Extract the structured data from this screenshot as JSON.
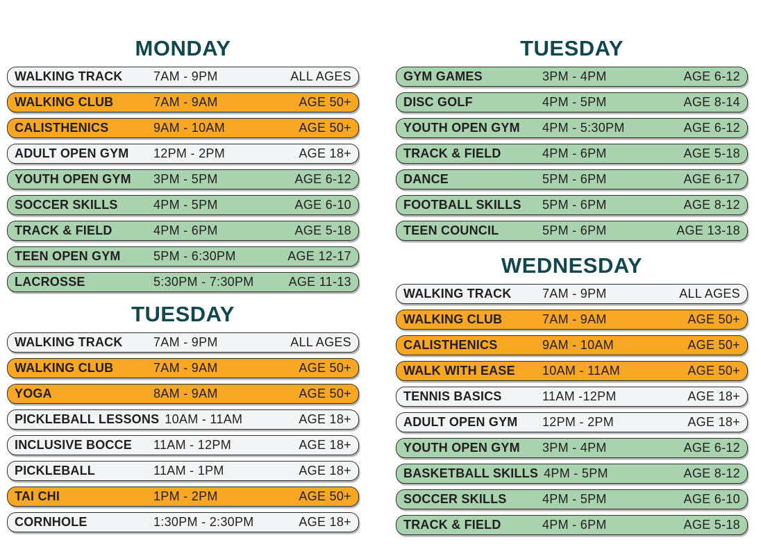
{
  "colors": {
    "title": "#11474E",
    "orange": "#F7A723",
    "green": "#A8D3AE",
    "white_row": "#F3F4F6",
    "border": "#32312D",
    "text": "#231F20",
    "page_bg": "#FFFFFF"
  },
  "legend_semantics": {
    "orange": "senior programs (AGE 50+)",
    "green": "youth programs",
    "white": "adult / all-ages programs"
  },
  "columns": {
    "left": {
      "sections": [
        {
          "title": "MONDAY",
          "rows": [
            {
              "name": "WALKING TRACK",
              "time": "7AM - 9PM",
              "age": "ALL AGES",
              "variant": "white"
            },
            {
              "name": "WALKING CLUB",
              "time": "7AM - 9AM",
              "age": "AGE 50+",
              "variant": "orange"
            },
            {
              "name": "CALISTHENICS",
              "time": "9AM - 10AM",
              "age": "AGE 50+",
              "variant": "orange"
            },
            {
              "name": "ADULT OPEN GYM",
              "time": "12PM - 2PM",
              "age": "AGE 18+",
              "variant": "white"
            },
            {
              "name": "YOUTH OPEN GYM",
              "time": "3PM - 5PM",
              "age": "AGE 6-12",
              "variant": "green"
            },
            {
              "name": "SOCCER SKILLS",
              "time": "4PM - 5PM",
              "age": "AGE 6-10",
              "variant": "green"
            },
            {
              "name": "TRACK & FIELD",
              "time": "4PM - 6PM",
              "age": "AGE 5-18",
              "variant": "green"
            },
            {
              "name": "TEEN OPEN GYM",
              "time": "5PM - 6:30PM",
              "age": "AGE 12-17",
              "variant": "green"
            },
            {
              "name": "LACROSSE",
              "time": "5:30PM - 7:30PM",
              "age": "AGE 11-13",
              "variant": "green"
            }
          ]
        },
        {
          "title": "TUESDAY",
          "rows": [
            {
              "name": "WALKING TRACK",
              "time": "7AM - 9PM",
              "age": "ALL AGES",
              "variant": "white"
            },
            {
              "name": "WALKING CLUB",
              "time": "7AM - 9AM",
              "age": "AGE 50+",
              "variant": "orange"
            },
            {
              "name": "YOGA",
              "time": "8AM - 9AM",
              "age": "AGE 50+",
              "variant": "orange"
            },
            {
              "name": "PICKLEBALL LESSONS",
              "time": "10AM - 11AM",
              "age": "AGE 18+",
              "variant": "white"
            },
            {
              "name": "INCLUSIVE BOCCE",
              "time": "11AM - 12PM",
              "age": "AGE 18+",
              "variant": "white"
            },
            {
              "name": "PICKLEBALL",
              "time": "11AM - 1PM",
              "age": "AGE 18+",
              "variant": "white"
            },
            {
              "name": "TAI CHI",
              "time": "1PM - 2PM",
              "age": "AGE 50+",
              "variant": "orange"
            },
            {
              "name": "CORNHOLE",
              "time": "1:30PM - 2:30PM",
              "age": "AGE 18+",
              "variant": "white"
            }
          ]
        }
      ]
    },
    "right": {
      "sections": [
        {
          "title": "TUESDAY",
          "rows": [
            {
              "name": "GYM GAMES",
              "time": "3PM - 4PM",
              "age": "AGE 6-12",
              "variant": "green"
            },
            {
              "name": "DISC GOLF",
              "time": "4PM - 5PM",
              "age": "AGE 8-14",
              "variant": "green"
            },
            {
              "name": "YOUTH OPEN GYM",
              "time": "4PM - 5:30PM",
              "age": "AGE 6-12",
              "variant": "green"
            },
            {
              "name": "TRACK & FIELD",
              "time": "4PM - 6PM",
              "age": "AGE 5-18",
              "variant": "green"
            },
            {
              "name": "DANCE",
              "time": "5PM - 6PM",
              "age": "AGE 6-17",
              "variant": "green"
            },
            {
              "name": "FOOTBALL SKILLS",
              "time": "5PM - 6PM",
              "age": "AGE 8-12",
              "variant": "green"
            },
            {
              "name": "TEEN COUNCIL",
              "time": "5PM - 6PM",
              "age": "AGE 13-18",
              "variant": "green"
            }
          ]
        },
        {
          "title": "WEDNESDAY",
          "rows": [
            {
              "name": "WALKING TRACK",
              "time": "7AM - 9PM",
              "age": "ALL AGES",
              "variant": "white"
            },
            {
              "name": "WALKING CLUB",
              "time": "7AM - 9AM",
              "age": "AGE 50+",
              "variant": "orange"
            },
            {
              "name": "CALISTHENICS",
              "time": "9AM - 10AM",
              "age": "AGE 50+",
              "variant": "orange"
            },
            {
              "name": "WALK WITH EASE",
              "time": "10AM - 11AM",
              "age": "AGE 50+",
              "variant": "orange"
            },
            {
              "name": "TENNIS BASICS",
              "time": "11AM -12PM",
              "age": "AGE 18+",
              "variant": "white"
            },
            {
              "name": "ADULT OPEN GYM",
              "time": "12PM - 2PM",
              "age": "AGE 18+",
              "variant": "white"
            },
            {
              "name": "YOUTH OPEN GYM",
              "time": "3PM - 4PM",
              "age": "AGE 6-12",
              "variant": "green"
            },
            {
              "name": "BASKETBALL SKILLS",
              "time": "4PM - 5PM",
              "age": "AGE 8-12",
              "variant": "green"
            },
            {
              "name": "SOCCER SKILLS",
              "time": "4PM - 5PM",
              "age": "AGE 6-10",
              "variant": "green"
            },
            {
              "name": "TRACK & FIELD",
              "time": "4PM - 6PM",
              "age": "AGE 5-18",
              "variant": "green"
            }
          ]
        }
      ]
    }
  }
}
